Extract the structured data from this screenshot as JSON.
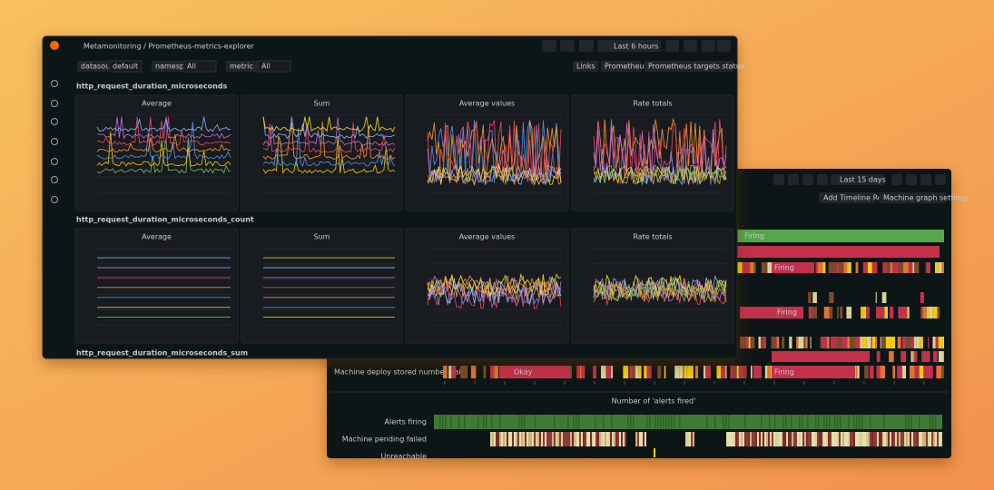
{
  "front": {
    "breadcrumb": "Metamonitoring / Prometheus-metrics-explorer",
    "time_range": "Last 6 hours",
    "variables": [
      {
        "label": "datasource",
        "value": "default"
      },
      {
        "label": "namespace",
        "value": "All"
      },
      {
        "label": "metric",
        "value": "All"
      }
    ],
    "links": [
      "Links",
      "Prometheus",
      "Prometheus targets status"
    ],
    "sections": [
      {
        "title": "http_request_duration_microseconds",
        "panels": [
          "Average",
          "Sum",
          "Average values",
          "Rate totals"
        ]
      },
      {
        "title": "http_request_duration_microseconds_count",
        "panels": [
          "Average",
          "Sum",
          "Average values",
          "Rate totals"
        ]
      },
      {
        "title": "http_request_duration_microseconds_sum"
      }
    ]
  },
  "back": {
    "time_range": "Last 15 days",
    "buttons": [
      "Add Timeline Rows",
      "Machine graph settings"
    ],
    "states": [
      "Firing",
      "Firing",
      "Firing",
      "Okay",
      "Firing"
    ],
    "timeline_label": "Machine deploy stored number - all",
    "panel_title": "Number of 'alerts fired'",
    "rows": [
      "Alerts firing",
      "Machine pending failed",
      "Unreachable"
    ]
  }
}
